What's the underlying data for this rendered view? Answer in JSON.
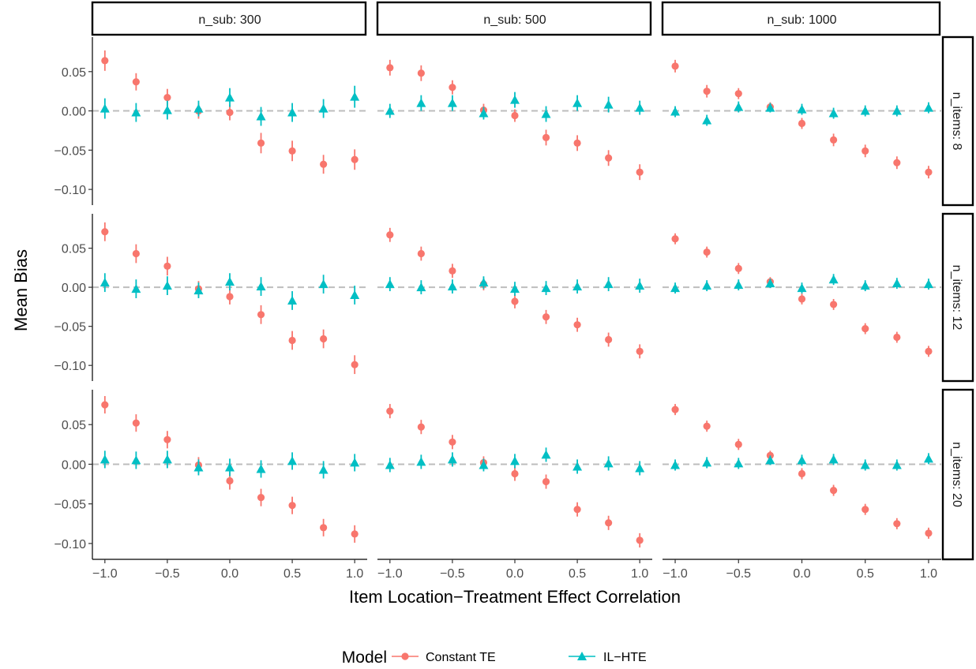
{
  "chart_data": {
    "type": "scatter",
    "xlabel": "Item Location−Treatment Effect Correlation",
    "ylabel": "Mean Bias",
    "x": [
      -1.0,
      -0.75,
      -0.5,
      -0.25,
      0.0,
      0.25,
      0.5,
      0.75,
      1.0
    ],
    "xticks": [
      -1.0,
      -0.5,
      0.0,
      0.5,
      1.0
    ],
    "xtick_labels": [
      "−1.0",
      "−0.5",
      "0.0",
      "0.5",
      "1.0"
    ],
    "yticks": [
      0.05,
      0.0,
      -0.05,
      -0.1
    ],
    "ytick_labels": [
      "0.05",
      "0.00",
      "−0.05",
      "−0.10"
    ],
    "xlim": [
      -1.1,
      1.1
    ],
    "ylim": [
      -0.12,
      0.094
    ],
    "reference_line": 0,
    "grid": false,
    "legend": {
      "title": "Model",
      "placement": "bottom",
      "entries": [
        {
          "name": "Constant TE",
          "color": "#F8766D",
          "shape": "circle"
        },
        {
          "name": "IL−HTE",
          "color": "#00BFC4",
          "shape": "triangle"
        }
      ]
    },
    "column_strips": [
      "n_sub: 300",
      "n_sub: 500",
      "n_sub: 1000"
    ],
    "row_strips": [
      "n_items: 8",
      "n_items: 12",
      "n_items: 20"
    ],
    "panels": [
      {
        "row": 0,
        "col": 0,
        "series": [
          {
            "name": "Constant TE",
            "y": [
              0.064,
              0.037,
              0.017,
              0.0,
              -0.002,
              -0.041,
              -0.051,
              -0.068,
              -0.062
            ],
            "err": [
              0.013,
              0.011,
              0.011,
              0.01,
              0.01,
              0.013,
              0.013,
              0.012,
              0.013
            ]
          },
          {
            "name": "IL−HTE",
            "y": [
              0.003,
              -0.002,
              0.001,
              0.003,
              0.017,
              -0.007,
              -0.002,
              0.003,
              0.018
            ],
            "err": [
              0.013,
              0.012,
              0.012,
              0.01,
              0.012,
              0.012,
              0.012,
              0.012,
              0.014
            ]
          }
        ]
      },
      {
        "row": 0,
        "col": 1,
        "series": [
          {
            "name": "Constant TE",
            "y": [
              0.055,
              0.048,
              0.03,
              0.001,
              -0.006,
              -0.034,
              -0.041,
              -0.06,
              -0.078
            ],
            "err": [
              0.01,
              0.01,
              0.009,
              0.008,
              0.008,
              0.01,
              0.01,
              0.01,
              0.01
            ]
          },
          {
            "name": "IL−HTE",
            "y": [
              0.0,
              0.01,
              0.01,
              -0.003,
              0.014,
              -0.004,
              0.01,
              0.008,
              0.004
            ],
            "err": [
              0.009,
              0.01,
              0.01,
              0.008,
              0.01,
              0.01,
              0.01,
              0.01,
              0.009
            ]
          }
        ]
      },
      {
        "row": 0,
        "col": 2,
        "series": [
          {
            "name": "Constant TE",
            "y": [
              0.057,
              0.025,
              0.022,
              0.005,
              -0.016,
              -0.037,
              -0.051,
              -0.066,
              -0.078
            ],
            "err": [
              0.008,
              0.008,
              0.007,
              0.006,
              0.007,
              0.008,
              0.008,
              0.008,
              0.008
            ]
          },
          {
            "name": "IL−HTE",
            "y": [
              -0.001,
              -0.012,
              0.005,
              0.004,
              0.002,
              -0.003,
              0.0,
              0.0,
              0.004
            ],
            "err": [
              0.007,
              0.007,
              0.007,
              0.006,
              0.007,
              0.007,
              0.007,
              0.007,
              0.007
            ]
          }
        ]
      },
      {
        "row": 1,
        "col": 0,
        "series": [
          {
            "name": "Constant TE",
            "y": [
              0.071,
              0.043,
              0.027,
              -0.002,
              -0.012,
              -0.035,
              -0.068,
              -0.066,
              -0.099
            ],
            "err": [
              0.012,
              0.012,
              0.012,
              0.01,
              0.01,
              0.012,
              0.012,
              0.012,
              0.012
            ]
          },
          {
            "name": "IL−HTE",
            "y": [
              0.006,
              -0.002,
              0.002,
              -0.004,
              0.007,
              0.001,
              -0.017,
              0.004,
              -0.01
            ],
            "err": [
              0.012,
              0.012,
              0.012,
              0.01,
              0.011,
              0.012,
              0.012,
              0.012,
              0.012
            ]
          }
        ]
      },
      {
        "row": 1,
        "col": 1,
        "series": [
          {
            "name": "Constant TE",
            "y": [
              0.067,
              0.043,
              0.021,
              0.004,
              -0.018,
              -0.038,
              -0.048,
              -0.067,
              -0.082
            ],
            "err": [
              0.009,
              0.009,
              0.009,
              0.008,
              0.009,
              0.009,
              0.009,
              0.009,
              0.009
            ]
          },
          {
            "name": "IL−HTE",
            "y": [
              0.004,
              0.0,
              0.001,
              0.006,
              -0.002,
              -0.001,
              0.001,
              0.004,
              0.002
            ],
            "err": [
              0.009,
              0.009,
              0.009,
              0.008,
              0.009,
              0.009,
              0.009,
              0.009,
              0.009
            ]
          }
        ]
      },
      {
        "row": 1,
        "col": 2,
        "series": [
          {
            "name": "Constant TE",
            "y": [
              0.062,
              0.045,
              0.024,
              0.007,
              -0.015,
              -0.022,
              -0.053,
              -0.064,
              -0.082
            ],
            "err": [
              0.007,
              0.007,
              0.007,
              0.006,
              0.007,
              0.007,
              0.007,
              0.007,
              0.007
            ]
          },
          {
            "name": "IL−HTE",
            "y": [
              -0.001,
              0.002,
              0.003,
              0.005,
              -0.001,
              0.01,
              0.002,
              0.005,
              0.004
            ],
            "err": [
              0.007,
              0.007,
              0.007,
              0.006,
              0.007,
              0.007,
              0.007,
              0.007,
              0.007
            ]
          }
        ]
      },
      {
        "row": 2,
        "col": 0,
        "series": [
          {
            "name": "Constant TE",
            "y": [
              0.075,
              0.052,
              0.031,
              -0.001,
              -0.021,
              -0.042,
              -0.052,
              -0.08,
              -0.088
            ],
            "err": [
              0.011,
              0.011,
              0.011,
              0.01,
              0.011,
              0.011,
              0.011,
              0.011,
              0.011
            ]
          },
          {
            "name": "IL−HTE",
            "y": [
              0.006,
              0.005,
              0.006,
              -0.004,
              -0.004,
              -0.006,
              0.004,
              -0.007,
              0.002
            ],
            "err": [
              0.011,
              0.011,
              0.011,
              0.01,
              0.011,
              0.011,
              0.011,
              0.011,
              0.011
            ]
          }
        ]
      },
      {
        "row": 2,
        "col": 1,
        "series": [
          {
            "name": "Constant TE",
            "y": [
              0.067,
              0.047,
              0.028,
              0.002,
              -0.012,
              -0.022,
              -0.057,
              -0.074,
              -0.096
            ],
            "err": [
              0.009,
              0.009,
              0.009,
              0.008,
              0.009,
              0.009,
              0.009,
              0.009,
              0.009
            ]
          },
          {
            "name": "IL−HTE",
            "y": [
              -0.001,
              0.003,
              0.006,
              -0.001,
              0.004,
              0.012,
              -0.003,
              0.001,
              -0.005
            ],
            "err": [
              0.009,
              0.009,
              0.009,
              0.008,
              0.009,
              0.009,
              0.009,
              0.009,
              0.009
            ]
          }
        ]
      },
      {
        "row": 2,
        "col": 2,
        "series": [
          {
            "name": "Constant TE",
            "y": [
              0.069,
              0.048,
              0.025,
              0.011,
              -0.012,
              -0.033,
              -0.057,
              -0.075,
              -0.087
            ],
            "err": [
              0.007,
              0.007,
              0.007,
              0.006,
              0.007,
              0.007,
              0.007,
              0.007,
              0.007
            ]
          },
          {
            "name": "IL−HTE",
            "y": [
              -0.001,
              0.002,
              0.001,
              0.005,
              0.005,
              0.006,
              -0.001,
              -0.001,
              0.007
            ],
            "err": [
              0.007,
              0.007,
              0.007,
              0.006,
              0.007,
              0.007,
              0.007,
              0.007,
              0.007
            ]
          }
        ]
      }
    ]
  }
}
